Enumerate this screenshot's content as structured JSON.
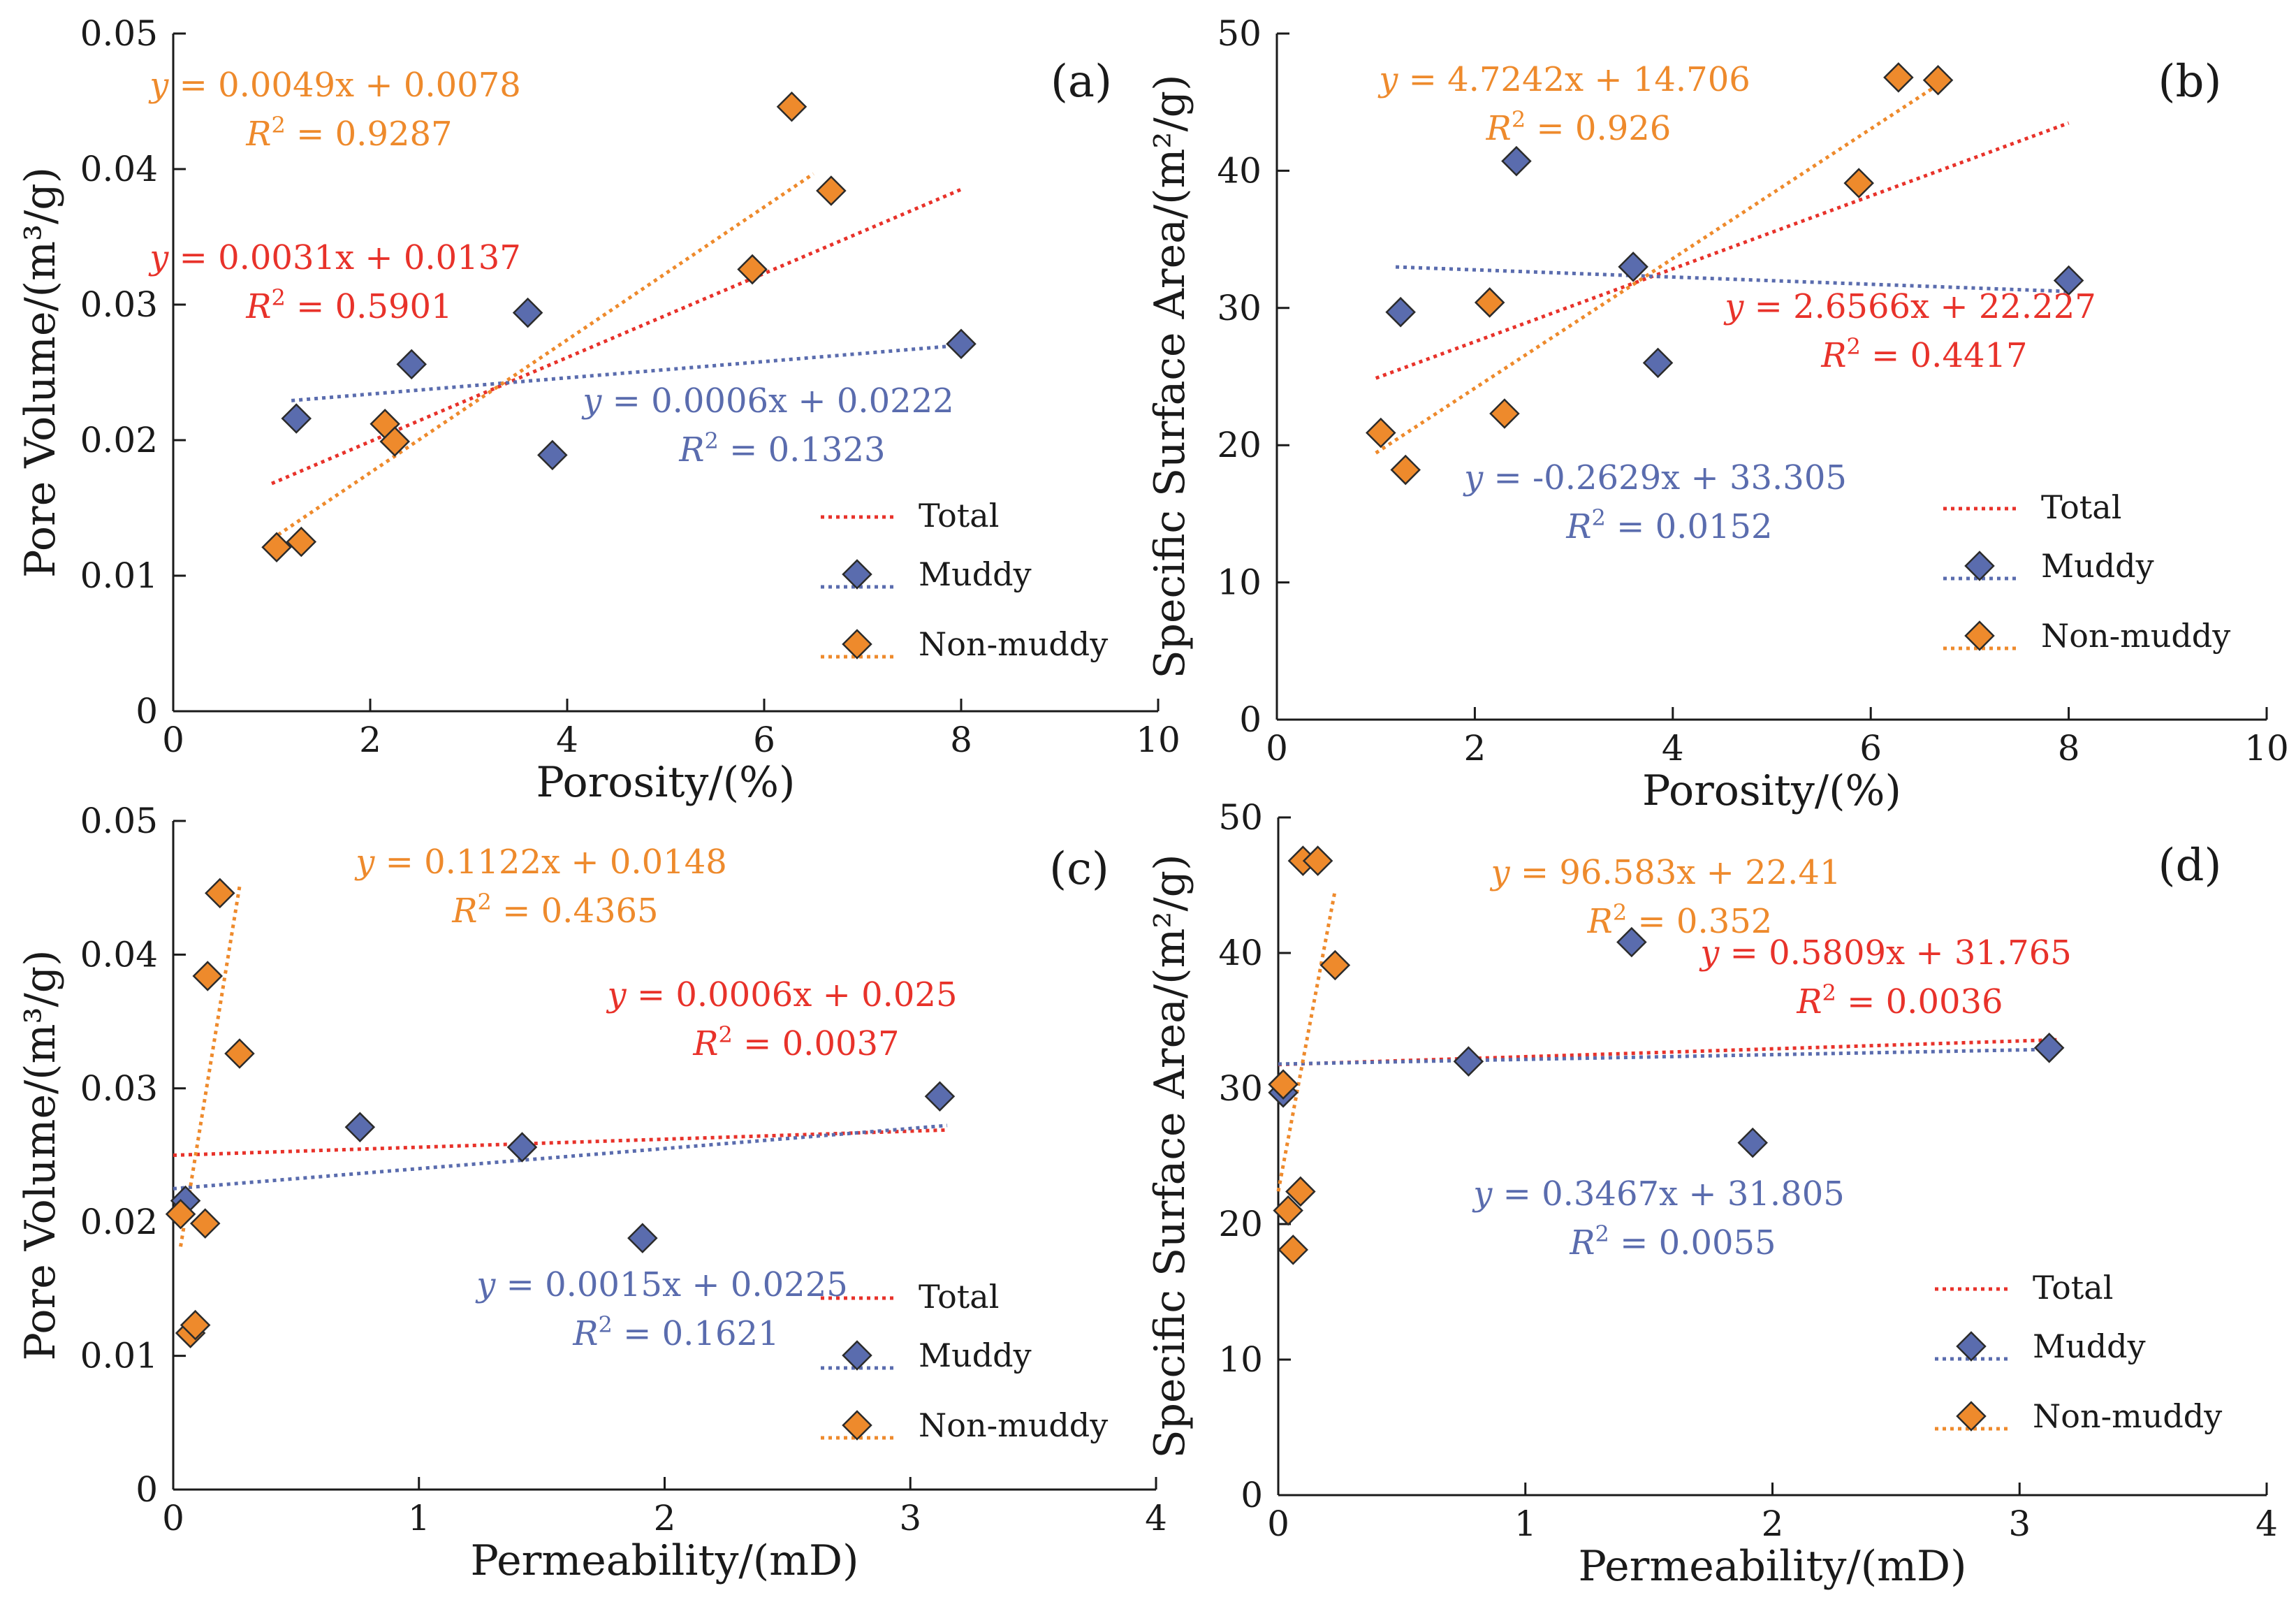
{
  "colors": {
    "total": "#e8322a",
    "muddy": "#5a6cae",
    "nonmuddy": "#ee8a2c",
    "axis": "#1a1a1a"
  },
  "legend": {
    "total": "Total",
    "muddy": "Muddy",
    "nonmuddy": "Non-muddy"
  },
  "chart_data": [
    {
      "type": "scatter",
      "panel": "(a)",
      "xlabel": "Porosity/(%)",
      "ylabel": "Pore Volume/(m³/g)",
      "xlim": [
        0,
        10
      ],
      "ylim": [
        0,
        0.05
      ],
      "xticks": [
        "0",
        "2",
        "4",
        "6",
        "8",
        "10"
      ],
      "yticks": [
        "0",
        "0.01",
        "0.02",
        "0.03",
        "0.04",
        "0.05"
      ],
      "series": [
        {
          "name": "Muddy",
          "points": [
            [
              1.25,
              0.0216
            ],
            [
              2.42,
              0.0256
            ],
            [
              3.6,
              0.0294
            ],
            [
              3.85,
              0.0189
            ],
            [
              8.0,
              0.0271
            ]
          ]
        },
        {
          "name": "Non-muddy",
          "points": [
            [
              1.05,
              0.0121
            ],
            [
              1.3,
              0.0125
            ],
            [
              2.15,
              0.0212
            ],
            [
              2.25,
              0.0199
            ],
            [
              5.88,
              0.0326
            ],
            [
              6.28,
              0.0446
            ],
            [
              6.68,
              0.0384
            ]
          ]
        }
      ],
      "trendlines": [
        {
          "name": "Total",
          "slope": 0.0031,
          "intercept": 0.0137,
          "x_range": [
            1.0,
            8.0
          ],
          "equation": "= 0.0031x + 0.0137",
          "r2": "= 0.5901"
        },
        {
          "name": "Muddy",
          "slope": 0.0006,
          "intercept": 0.0222,
          "x_range": [
            1.2,
            8.0
          ],
          "equation": "= 0.0006x + 0.0222",
          "r2": "= 0.1323"
        },
        {
          "name": "Non-muddy",
          "slope": 0.0049,
          "intercept": 0.0078,
          "x_range": [
            1.0,
            6.5
          ],
          "equation": "= 0.0049x + 0.0078",
          "r2": "= 0.9287"
        }
      ]
    },
    {
      "type": "scatter",
      "panel": "(b)",
      "xlabel": "Porosity/(%)",
      "ylabel": "Specific Surface Area/(m²/g)",
      "xlim": [
        0,
        10
      ],
      "ylim": [
        0,
        50
      ],
      "xticks": [
        "0",
        "2",
        "4",
        "6",
        "8",
        "10"
      ],
      "yticks": [
        "0",
        "10",
        "20",
        "30",
        "40",
        "50"
      ],
      "series": [
        {
          "name": "Muddy",
          "points": [
            [
              1.25,
              29.7
            ],
            [
              2.42,
              40.7
            ],
            [
              3.6,
              33.0
            ],
            [
              3.85,
              26.0
            ],
            [
              8.0,
              32.0
            ]
          ]
        },
        {
          "name": "Non-muddy",
          "points": [
            [
              1.05,
              20.9
            ],
            [
              1.3,
              18.2
            ],
            [
              2.15,
              30.4
            ],
            [
              2.3,
              22.3
            ],
            [
              5.88,
              39.1
            ],
            [
              6.28,
              46.8
            ],
            [
              6.68,
              46.6
            ]
          ]
        }
      ],
      "trendlines": [
        {
          "name": "Total",
          "slope": 2.6566,
          "intercept": 22.227,
          "x_range": [
            1.0,
            8.0
          ],
          "equation": "= 2.6566x + 22.227",
          "r2": "= 0.4417"
        },
        {
          "name": "Muddy",
          "slope": -0.2629,
          "intercept": 33.305,
          "x_range": [
            1.2,
            8.0
          ],
          "equation": "= -0.2629x + 33.305",
          "r2": "= 0.0152"
        },
        {
          "name": "Non-muddy",
          "slope": 4.7242,
          "intercept": 14.706,
          "x_range": [
            1.0,
            6.7
          ],
          "equation": "= 4.7242x + 14.706",
          "r2": "= 0.926"
        }
      ]
    },
    {
      "type": "scatter",
      "panel": "(c)",
      "xlabel": "Permeability/(mD)",
      "ylabel": "Pore Volume/(m³/g)",
      "xlim": [
        0,
        4
      ],
      "ylim": [
        0,
        0.05
      ],
      "xticks": [
        "0",
        "1",
        "2",
        "3",
        "4"
      ],
      "yticks": [
        "0",
        "0.01",
        "0.02",
        "0.03",
        "0.04",
        "0.05"
      ],
      "series": [
        {
          "name": "Muddy",
          "points": [
            [
              0.05,
              0.0216
            ],
            [
              0.76,
              0.0271
            ],
            [
              1.42,
              0.0256
            ],
            [
              1.91,
              0.0188
            ],
            [
              3.12,
              0.0294
            ]
          ]
        },
        {
          "name": "Non-muddy",
          "points": [
            [
              0.03,
              0.0206
            ],
            [
              0.07,
              0.0117
            ],
            [
              0.09,
              0.0123
            ],
            [
              0.13,
              0.0199
            ],
            [
              0.14,
              0.0384
            ],
            [
              0.19,
              0.0446
            ],
            [
              0.27,
              0.0326
            ]
          ]
        }
      ],
      "trendlines": [
        {
          "name": "Total",
          "slope": 0.0006,
          "intercept": 0.025,
          "x_range": [
            0.0,
            3.15
          ],
          "equation": "= 0.0006x + 0.025",
          "r2": "= 0.0037"
        },
        {
          "name": "Muddy",
          "slope": 0.0015,
          "intercept": 0.0225,
          "x_range": [
            0.0,
            3.15
          ],
          "equation": "= 0.0015x + 0.0225",
          "r2": "= 0.1621"
        },
        {
          "name": "Non-muddy",
          "slope": 0.1122,
          "intercept": 0.0148,
          "x_range": [
            0.03,
            0.27
          ],
          "equation": "= 0.1122x + 0.0148",
          "r2": "= 0.4365"
        }
      ]
    },
    {
      "type": "scatter",
      "panel": "(d)",
      "xlabel": "Permeability/(mD)",
      "ylabel": "Specific Surface Area/(m²/g)",
      "xlim": [
        0,
        4
      ],
      "ylim": [
        0,
        50
      ],
      "xticks": [
        "0",
        "1",
        "2",
        "3",
        "4"
      ],
      "yticks": [
        "0",
        "10",
        "20",
        "30",
        "40",
        "50"
      ],
      "series": [
        {
          "name": "Muddy",
          "points": [
            [
              0.02,
              29.7
            ],
            [
              0.77,
              32.0
            ],
            [
              1.43,
              40.8
            ],
            [
              1.92,
              26.0
            ],
            [
              3.12,
              33.0
            ]
          ]
        },
        {
          "name": "Non-muddy",
          "points": [
            [
              0.02,
              30.3
            ],
            [
              0.04,
              21.0
            ],
            [
              0.06,
              18.1
            ],
            [
              0.09,
              22.4
            ],
            [
              0.1,
              46.8
            ],
            [
              0.16,
              46.8
            ],
            [
              0.23,
              39.1
            ]
          ]
        }
      ],
      "trendlines": [
        {
          "name": "Total",
          "slope": 0.5809,
          "intercept": 31.765,
          "x_range": [
            0.0,
            3.15
          ],
          "equation": "= 0.5809x + 31.765",
          "r2": "= 0.0036"
        },
        {
          "name": "Muddy",
          "slope": 0.3467,
          "intercept": 31.805,
          "x_range": [
            0.0,
            3.15
          ],
          "equation": "= 0.3467x + 31.805",
          "r2": "= 0.0055"
        },
        {
          "name": "Non-muddy",
          "slope": 96.583,
          "intercept": 22.41,
          "x_range": [
            0.0,
            0.23
          ],
          "equation": "= 96.583x + 22.41",
          "r2": "= 0.352"
        }
      ]
    }
  ]
}
